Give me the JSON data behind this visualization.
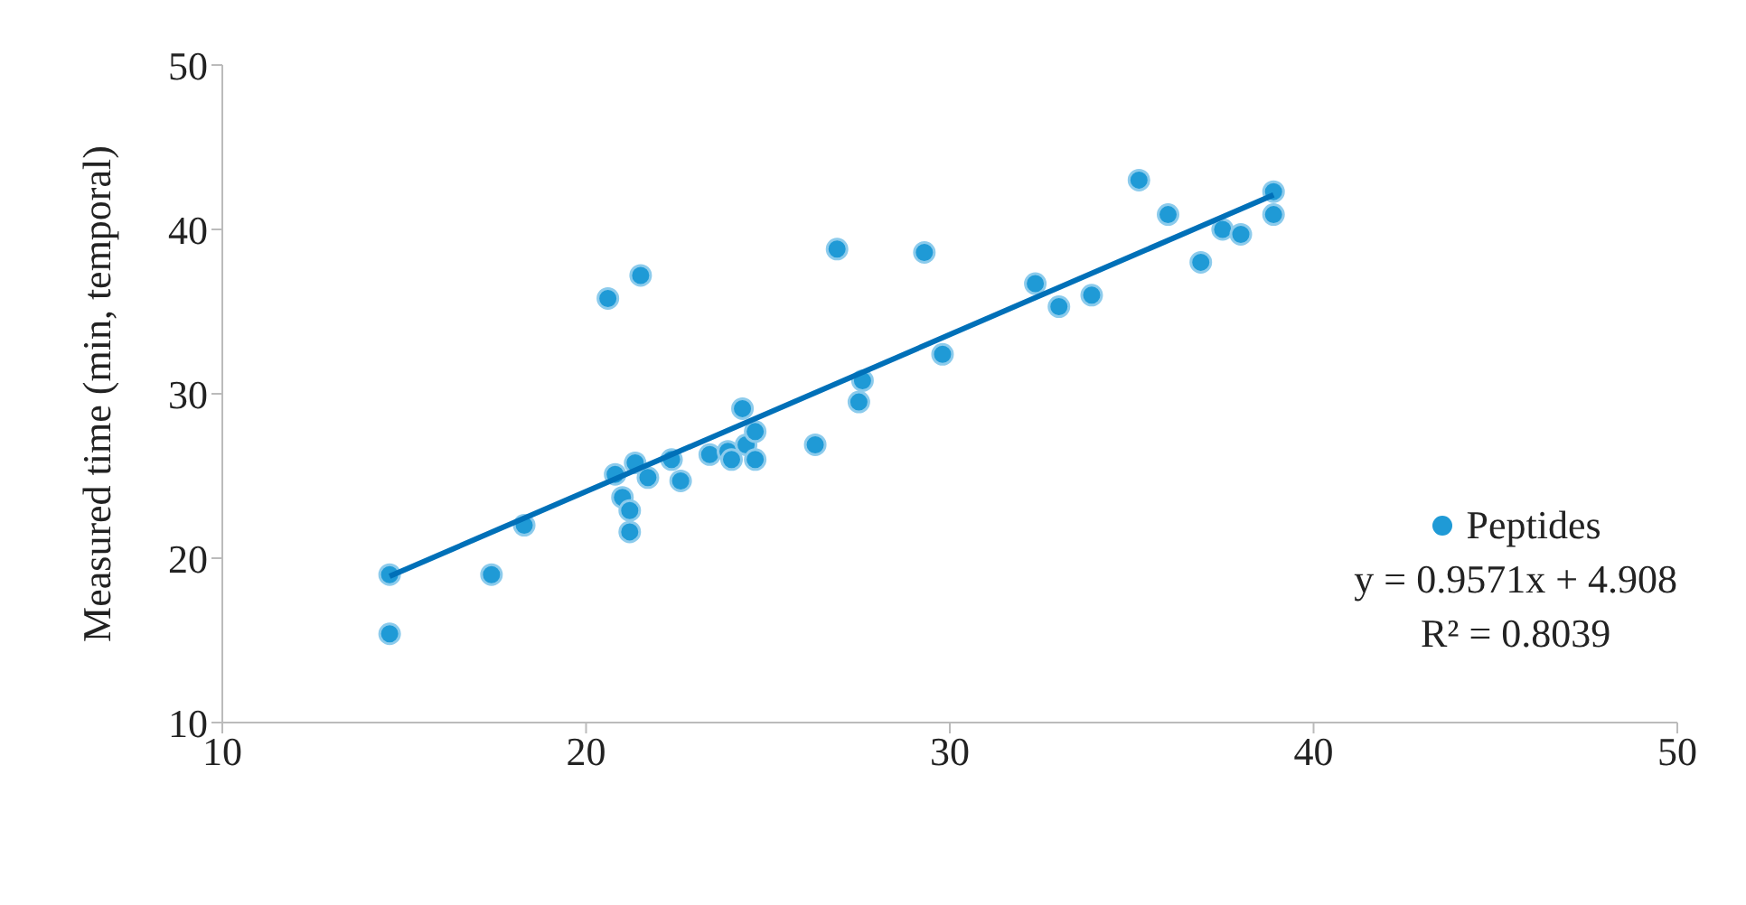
{
  "chart_data": {
    "type": "scatter",
    "ylabel": "Measured time (min, temporal)",
    "xlim": [
      10,
      50
    ],
    "xticks": [
      10,
      20,
      30,
      40,
      50
    ],
    "ylim": [
      10,
      50
    ],
    "yticks": [
      10,
      20,
      30,
      40,
      50
    ],
    "legend": "right",
    "marker": "circle",
    "series": [
      {
        "name": "Peptides",
        "color": "#1f9ad6",
        "x": [
          14.6,
          14.6,
          17.4,
          18.3,
          20.6,
          21.5,
          20.8,
          21.0,
          21.2,
          21.2,
          21.35,
          21.7,
          22.35,
          22.6,
          23.4,
          23.9,
          24.0,
          24.3,
          24.4,
          24.65,
          24.65,
          26.3,
          26.9,
          27.5,
          27.6,
          29.3,
          29.8,
          32.35,
          33.0,
          33.9,
          35.2,
          36.0,
          36.9,
          37.5,
          38.0,
          38.9,
          38.9
        ],
        "values": [
          19.0,
          15.4,
          19.0,
          22.0,
          35.8,
          37.2,
          25.1,
          23.7,
          22.9,
          21.6,
          25.8,
          24.9,
          26.0,
          24.7,
          26.3,
          26.5,
          26.0,
          29.1,
          26.9,
          27.7,
          26.0,
          26.9,
          38.8,
          29.5,
          30.8,
          38.6,
          32.4,
          36.7,
          35.3,
          36.0,
          43.0,
          40.9,
          38.0,
          40.0,
          39.7,
          42.3,
          40.9
        ]
      },
      {
        "color": "#0070b8",
        "type": "line",
        "marker": "none",
        "line_style": "solid",
        "x": [
          14.6,
          38.9
        ],
        "values": [
          18.9,
          42.1
        ]
      }
    ],
    "annotations": [
      "y = 0.9571x  + 4.908",
      "R² = 0.8039"
    ]
  }
}
